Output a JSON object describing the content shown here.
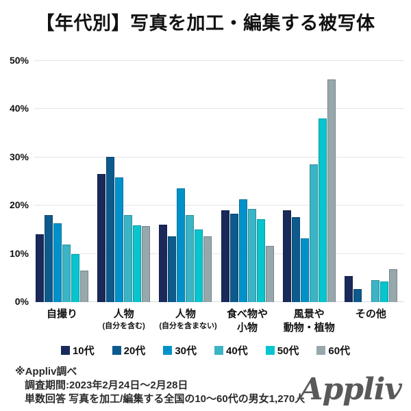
{
  "title": "【年代別】写真を加工・編集する被写体",
  "chart_data": {
    "type": "bar",
    "title": "【年代別】写真を加工・編集する被写体",
    "categories": [
      "自撮り",
      "人物(自分を含む)",
      "人物(自分を含まない)",
      "食べ物や小物",
      "風景や動物・植物",
      "その他"
    ],
    "category_lines": [
      [
        "自撮り"
      ],
      [
        "人物",
        "(自分を含む)"
      ],
      [
        "人物",
        "(自分を含まない)"
      ],
      [
        "食べ物や",
        "小物"
      ],
      [
        "風景や",
        "動物・植物"
      ],
      [
        "その他"
      ]
    ],
    "series": [
      {
        "name": "10代",
        "color": "#19295a",
        "values": [
          14.0,
          26.5,
          16.0,
          19.1,
          19.1,
          5.4
        ]
      },
      {
        "name": "20代",
        "color": "#0d5a8d",
        "values": [
          18.0,
          30.1,
          13.6,
          18.3,
          17.6,
          2.7
        ]
      },
      {
        "name": "30代",
        "color": "#0091ca",
        "values": [
          16.4,
          25.8,
          23.6,
          21.3,
          13.2,
          0
        ]
      },
      {
        "name": "40代",
        "color": "#3bb4c5",
        "values": [
          12.0,
          18.0,
          18.0,
          19.3,
          28.5,
          4.6
        ]
      },
      {
        "name": "50代",
        "color": "#06c5ce",
        "values": [
          10.0,
          15.9,
          15.1,
          17.2,
          38.0,
          4.3
        ]
      },
      {
        "name": "60代",
        "color": "#97a8ad",
        "values": [
          6.6,
          15.7,
          13.6,
          11.6,
          46.1,
          6.8
        ]
      }
    ],
    "y_axis": {
      "min": 0,
      "max": 50,
      "ticks": [
        "0%",
        "10%",
        "20%",
        "30%",
        "40%",
        "50%"
      ]
    },
    "grid": true,
    "legend_position": "bottom",
    "xlabel": "",
    "ylabel": ""
  },
  "footer": {
    "source": "※Appliv調べ",
    "period": "調査期間:2023年2月24日〜2月28日",
    "method": "単数回答 写真を加工/編集する全国の10〜60代の男女1,270人",
    "logo": "Appliv"
  }
}
